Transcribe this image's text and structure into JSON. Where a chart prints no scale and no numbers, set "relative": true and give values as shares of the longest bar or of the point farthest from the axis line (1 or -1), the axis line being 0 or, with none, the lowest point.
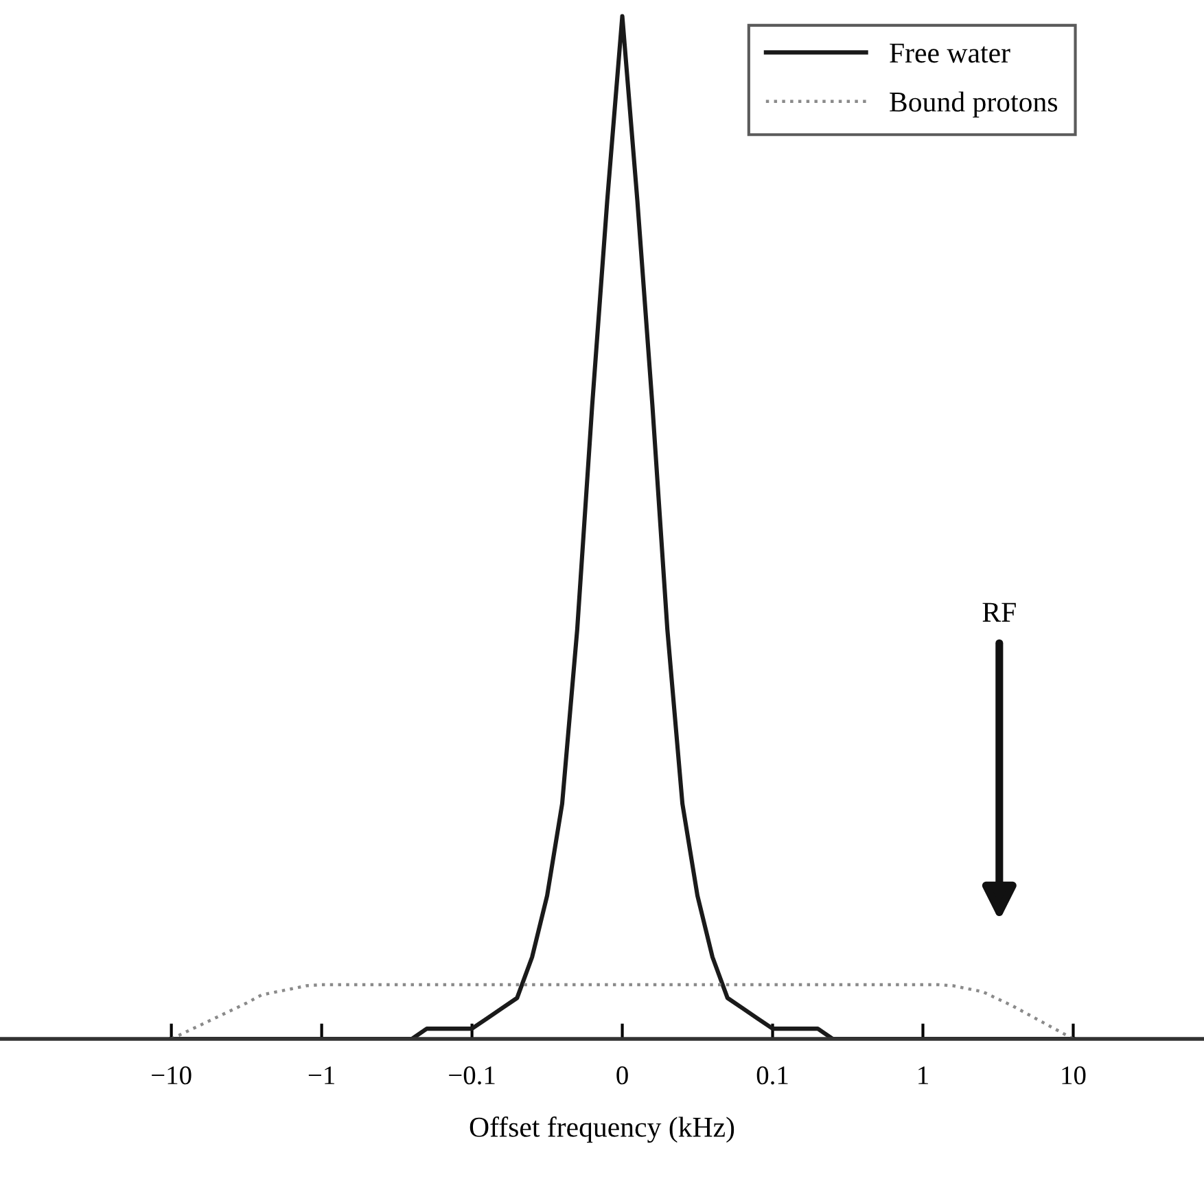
{
  "chart_data": {
    "type": "line",
    "relative": true,
    "xlabel": "Offset frequency (kHz)",
    "categories": [
      "−10",
      null,
      null,
      null,
      null,
      null,
      null,
      null,
      null,
      null,
      "−1",
      null,
      null,
      null,
      null,
      null,
      null,
      null,
      null,
      null,
      "−0.1",
      null,
      null,
      null,
      null,
      null,
      null,
      null,
      null,
      null,
      "0",
      null,
      null,
      null,
      null,
      null,
      null,
      null,
      null,
      null,
      "0.1",
      null,
      null,
      null,
      null,
      null,
      null,
      null,
      null,
      null,
      "1",
      null,
      null,
      null,
      null,
      null,
      null,
      null,
      null,
      null,
      "10"
    ],
    "series": [
      {
        "name": "Free water",
        "color": "#1a1a1a",
        "line_style": "solid",
        "values": [
          0,
          0,
          0,
          0,
          0,
          0,
          0,
          0,
          0,
          0,
          0,
          0,
          0,
          0,
          0,
          0,
          0,
          0.01,
          0.01,
          0.01,
          0.01,
          0.02,
          0.03,
          0.04,
          0.08,
          0.14,
          0.23,
          0.4,
          0.62,
          0.82,
          1,
          0.82,
          0.62,
          0.4,
          0.23,
          0.14,
          0.08,
          0.04,
          0.03,
          0.02,
          0.01,
          0.01,
          0.01,
          0.01,
          0,
          0,
          0,
          0,
          0,
          0,
          0,
          0,
          0,
          0,
          0,
          0,
          0,
          0,
          0,
          0,
          0
        ]
      },
      {
        "name": "Bound protons",
        "color": "#8a8a8a",
        "line_style": "dotted",
        "values": [
          0,
          0.007,
          0.014,
          0.021,
          0.028,
          0.035,
          0.043,
          0.046,
          0.049,
          0.052,
          0.053,
          0.053,
          0.053,
          0.053,
          0.053,
          0.053,
          0.053,
          0.053,
          0.053,
          0.053,
          0.053,
          0.053,
          0.053,
          0.053,
          0.053,
          0.053,
          0.053,
          0.053,
          0.053,
          0.053,
          0.053,
          0.053,
          0.053,
          0.053,
          0.053,
          0.053,
          0.053,
          0.053,
          0.053,
          0.053,
          0.053,
          0.053,
          0.053,
          0.053,
          0.053,
          0.053,
          0.053,
          0.053,
          0.053,
          0.053,
          0.053,
          0.053,
          0.052,
          0.049,
          0.046,
          0.039,
          0.032,
          0.024,
          0.016,
          0.008,
          0
        ]
      }
    ],
    "annotations": [
      "RF"
    ],
    "legend": "top right",
    "grid": false,
    "marker": "none"
  }
}
